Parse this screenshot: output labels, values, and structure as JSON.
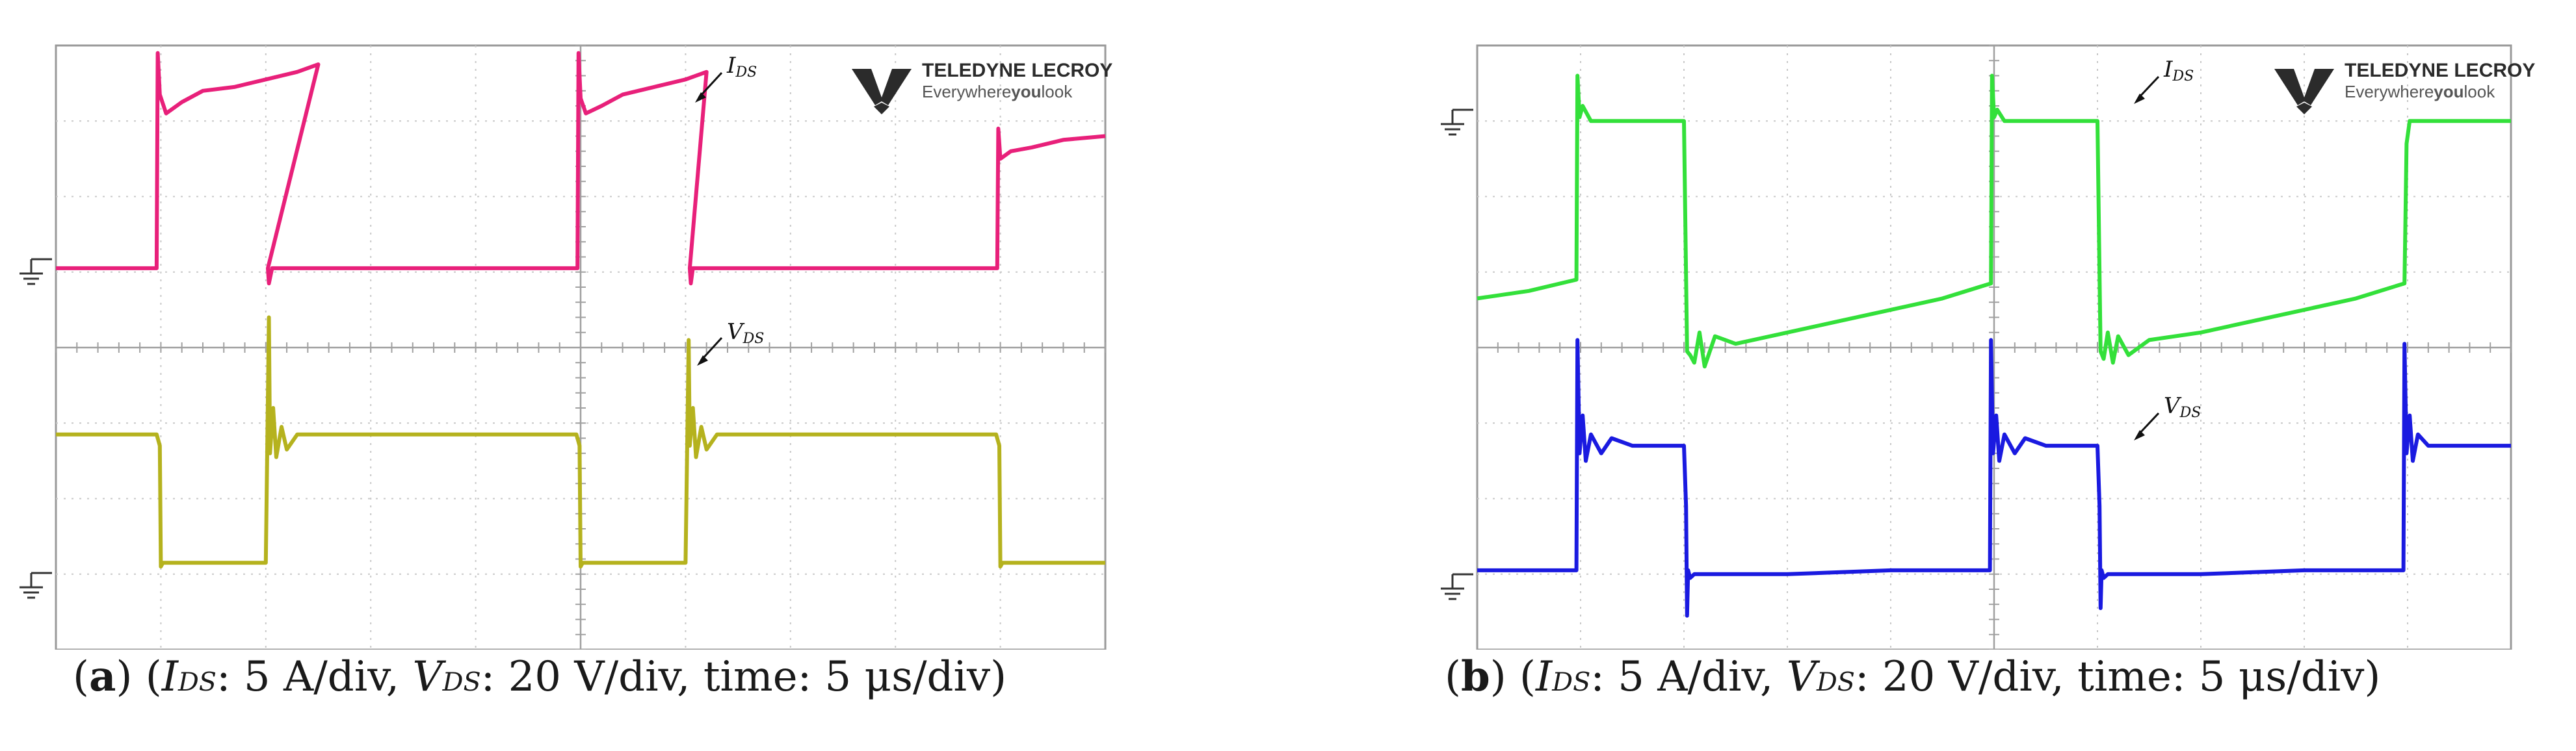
{
  "brand": {
    "name": "TELEDYNE LECROY",
    "tagline_pre": "Everywhere",
    "tagline_bold": "you",
    "tagline_post": "look"
  },
  "chart_data": [
    {
      "type": "line",
      "panel": "a",
      "label": "a",
      "caption": {
        "ids": "I",
        "ids_sub": "DS",
        "ids_scale": ": 5 A/div, ",
        "vds": "V",
        "vds_sub": "DS",
        "vds_scale": ": 20 V/div, time: 5 μs/div)"
      },
      "x_unit": "div",
      "x_range": [
        0,
        10
      ],
      "y_range": [
        -4,
        4
      ],
      "grid_divisions": [
        10,
        8
      ],
      "annotations": [
        {
          "main": "I",
          "sub": "DS",
          "target": "I_DS"
        },
        {
          "main": "V",
          "sub": "DS",
          "target": "V_DS"
        }
      ],
      "series": [
        {
          "name": "I_DS",
          "color": "#e8207a",
          "x": [
            0,
            0.96,
            0.97,
            0.99,
            1.05,
            1.2,
            1.4,
            1.7,
            2.0,
            2.3,
            2.5,
            2.02,
            2.03,
            2.06,
            2.2,
            4.97,
            4.98,
            5.0,
            5.05,
            5.2,
            5.4,
            5.7,
            6.0,
            6.2,
            6.04,
            6.05,
            6.07,
            6.2,
            8.97,
            8.98,
            9.0,
            9.1,
            9.3,
            9.6,
            10.0
          ],
          "y": [
            1.05,
            1.05,
            3.9,
            3.35,
            3.1,
            3.25,
            3.4,
            3.45,
            3.55,
            3.65,
            3.75,
            1.05,
            0.85,
            1.05,
            1.05,
            1.05,
            3.9,
            3.3,
            3.1,
            3.2,
            3.35,
            3.45,
            3.55,
            3.65,
            1.05,
            0.85,
            1.05,
            1.05,
            1.05,
            2.9,
            2.5,
            2.6,
            2.65,
            2.75,
            2.8
          ]
        },
        {
          "name": "V_DS",
          "color": "#b5b21e",
          "x": [
            0,
            0.96,
            0.99,
            1.0,
            1.02,
            2.0,
            2.03,
            2.04,
            2.07,
            2.1,
            2.15,
            2.2,
            2.3,
            2.5,
            4.96,
            4.99,
            5.0,
            5.02,
            6.0,
            6.03,
            6.04,
            6.07,
            6.1,
            6.15,
            6.2,
            6.3,
            6.5,
            8.96,
            8.99,
            9.0,
            9.02,
            10.0
          ],
          "y": [
            -1.15,
            -1.15,
            -1.3,
            -2.9,
            -2.85,
            -2.85,
            0.4,
            -1.4,
            -0.8,
            -1.45,
            -1.05,
            -1.35,
            -1.15,
            -1.15,
            -1.15,
            -1.3,
            -2.9,
            -2.85,
            -2.85,
            0.1,
            -1.3,
            -0.8,
            -1.45,
            -1.05,
            -1.35,
            -1.15,
            -1.15,
            -1.15,
            -1.3,
            -2.9,
            -2.85,
            -2.85
          ]
        }
      ]
    },
    {
      "type": "line",
      "panel": "b",
      "label": "b",
      "caption": {
        "ids": "I",
        "ids_sub": "DS",
        "ids_scale": ": 5 A/div, ",
        "vds": "V",
        "vds_sub": "DS",
        "vds_scale": ": 20 V/div, time: 5 μs/div)"
      },
      "x_unit": "div",
      "x_range": [
        0,
        10
      ],
      "y_range": [
        -4,
        4
      ],
      "grid_divisions": [
        10,
        8
      ],
      "annotations": [
        {
          "main": "I",
          "sub": "DS",
          "target": "I_DS"
        },
        {
          "main": "V",
          "sub": "DS",
          "target": "V_DS"
        }
      ],
      "series": [
        {
          "name": "I_DS",
          "color": "#33e03a",
          "x": [
            0,
            0.5,
            0.96,
            0.97,
            0.99,
            1.02,
            1.1,
            2.0,
            2.03,
            2.06,
            2.1,
            2.15,
            2.2,
            2.3,
            2.5,
            3.0,
            3.5,
            4.0,
            4.5,
            4.97,
            4.98,
            5.0,
            5.03,
            5.1,
            6.0,
            6.03,
            6.06,
            6.1,
            6.15,
            6.2,
            6.3,
            6.5,
            7.0,
            7.5,
            8.0,
            8.5,
            8.97,
            8.99,
            9.02,
            9.1,
            10.0
          ],
          "y": [
            0.65,
            0.75,
            0.9,
            3.6,
            3.05,
            3.2,
            3.0,
            3.0,
            -0.05,
            -0.1,
            -0.2,
            0.2,
            -0.25,
            0.15,
            0.05,
            0.2,
            0.35,
            0.5,
            0.65,
            0.85,
            3.6,
            3.05,
            3.15,
            3.0,
            3.0,
            -0.05,
            -0.15,
            0.2,
            -0.2,
            0.15,
            -0.1,
            0.1,
            0.2,
            0.35,
            0.5,
            0.65,
            0.85,
            2.7,
            3.0,
            3.0,
            3.0
          ]
        },
        {
          "name": "V_DS",
          "color": "#1a1ae0",
          "x": [
            0,
            0.5,
            0.96,
            0.97,
            0.99,
            1.02,
            1.05,
            1.1,
            1.2,
            1.3,
            1.5,
            2.0,
            2.02,
            2.03,
            2.04,
            2.06,
            2.1,
            3.0,
            4.0,
            4.96,
            4.97,
            4.99,
            5.02,
            5.05,
            5.1,
            5.2,
            5.3,
            5.5,
            6.0,
            6.02,
            6.03,
            6.04,
            6.06,
            6.1,
            7.0,
            8.0,
            8.96,
            8.97,
            8.99,
            9.02,
            9.05,
            9.1,
            9.2,
            10.0
          ],
          "y": [
            -2.95,
            -2.95,
            -2.95,
            0.1,
            -1.4,
            -0.9,
            -1.5,
            -1.15,
            -1.4,
            -1.2,
            -1.3,
            -1.3,
            -2.1,
            -3.55,
            -2.95,
            -3.05,
            -3.0,
            -3.0,
            -2.95,
            -2.95,
            0.1,
            -1.4,
            -0.9,
            -1.5,
            -1.15,
            -1.4,
            -1.2,
            -1.3,
            -1.3,
            -2.1,
            -3.45,
            -2.95,
            -3.05,
            -3.0,
            -3.0,
            -2.95,
            -2.95,
            0.05,
            -1.4,
            -0.9,
            -1.5,
            -1.15,
            -1.3,
            -1.3
          ]
        }
      ]
    }
  ]
}
